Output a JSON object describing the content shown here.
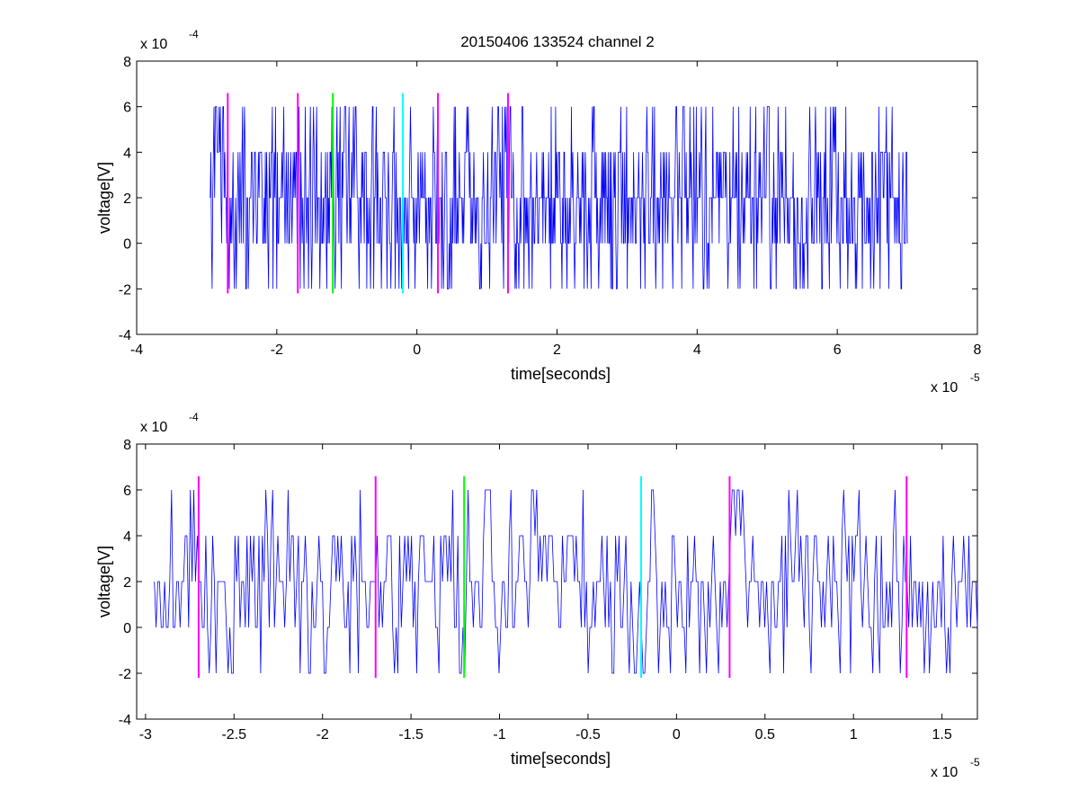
{
  "figure": {
    "title": "20150406 133524 channel 2"
  },
  "chart_data": [
    {
      "type": "line",
      "xlabel": "time[seconds]",
      "ylabel": "voltage[V]",
      "x_exponent": "x 10",
      "x_exponent_power": "-5",
      "y_exponent": "x 10",
      "y_exponent_power": "-4",
      "xlim": [
        -4,
        8
      ],
      "ylim": [
        -4,
        8
      ],
      "xticks": [
        -4,
        -2,
        0,
        2,
        4,
        6,
        8
      ],
      "xtick_labels": [
        "-4",
        "-2",
        "0",
        "2",
        "4",
        "6",
        "8"
      ],
      "yticks": [
        -4,
        -2,
        0,
        2,
        4,
        6,
        8
      ],
      "ytick_labels": [
        "-4",
        "-2",
        "0",
        "2",
        "4",
        "6",
        "8"
      ],
      "grid": false,
      "series": [
        {
          "color": "#0000ff",
          "x_start": -2.95,
          "x_end": 7.0,
          "levels": [
            -2,
            0,
            2,
            4,
            6
          ],
          "note_values": "quantized noise around 2, ranging -2 to 6"
        }
      ],
      "markers": [
        {
          "x": -2.7,
          "color": "#ff00ff",
          "y_range": [
            -2.2,
            6.6
          ]
        },
        {
          "x": -1.7,
          "color": "#ff00ff",
          "y_range": [
            -2.2,
            6.6
          ]
        },
        {
          "x": -1.2,
          "color": "#00ff00",
          "y_range": [
            -2.2,
            6.6
          ]
        },
        {
          "x": -0.2,
          "color": "#00ffff",
          "y_range": [
            -2.2,
            6.6
          ]
        },
        {
          "x": 0.3,
          "color": "#ff00ff",
          "y_range": [
            -2.2,
            6.6
          ]
        },
        {
          "x": 1.3,
          "color": "#ff00ff",
          "y_range": [
            -2.2,
            6.6
          ]
        }
      ]
    },
    {
      "type": "line",
      "xlabel": "time[seconds]",
      "ylabel": "voltage[V]",
      "x_exponent": "x 10",
      "x_exponent_power": "-5",
      "y_exponent": "x 10",
      "y_exponent_power": "-4",
      "xlim": [
        -3.05,
        1.7
      ],
      "ylim": [
        -4,
        8
      ],
      "xticks": [
        -3,
        -2.5,
        -2,
        -1.5,
        -1,
        -0.5,
        0,
        0.5,
        1,
        1.5
      ],
      "xtick_labels": [
        "-3",
        "-2.5",
        "-2",
        "-1.5",
        "-1",
        "-0.5",
        "0",
        "0.5",
        "1",
        "1.5"
      ],
      "yticks": [
        -4,
        -2,
        0,
        2,
        4,
        6,
        8
      ],
      "ytick_labels": [
        "-4",
        "-2",
        "0",
        "2",
        "4",
        "6",
        "8"
      ],
      "grid": false,
      "series": [
        {
          "color": "#0000ff",
          "x_start": -2.95,
          "x_end": 1.7,
          "levels": [
            -2,
            0,
            2,
            4,
            6
          ]
        }
      ],
      "markers": [
        {
          "x": -2.7,
          "color": "#ff00ff",
          "y_range": [
            -2.2,
            6.6
          ]
        },
        {
          "x": -1.7,
          "color": "#ff00ff",
          "y_range": [
            -2.2,
            6.6
          ]
        },
        {
          "x": -1.2,
          "color": "#00ff00",
          "y_range": [
            -2.2,
            6.6
          ]
        },
        {
          "x": -0.2,
          "color": "#00ffff",
          "y_range": [
            -2.2,
            6.6
          ]
        },
        {
          "x": 0.3,
          "color": "#ff00ff",
          "y_range": [
            -2.2,
            6.6
          ]
        },
        {
          "x": 1.3,
          "color": "#ff00ff",
          "y_range": [
            -2.2,
            6.6
          ]
        }
      ]
    }
  ]
}
